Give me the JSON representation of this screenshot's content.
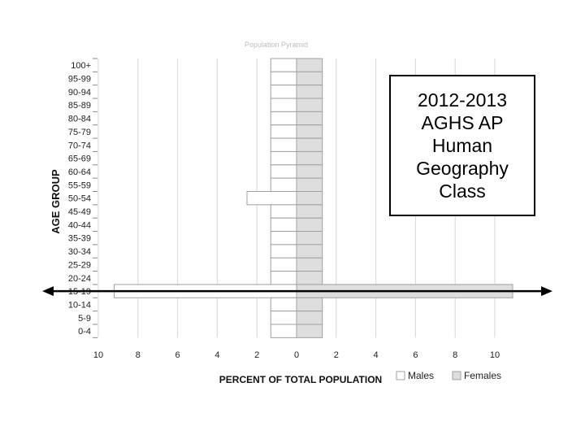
{
  "colors": {
    "males_fill": "#ffffff",
    "females_fill": "#dedede",
    "bar_stroke": "#a0a0a0",
    "grid": "#d6d6d6",
    "arrow": "#000000"
  },
  "chart_data": {
    "type": "bar",
    "orientation": "horizontal",
    "subtype": "population-pyramid",
    "title": "Population Pyramid",
    "xlabel": "PERCENT OF TOTAL POPULATION",
    "ylabel": "AGE GROUP",
    "xlim": [
      -10,
      10
    ],
    "x_ticks": [
      "10",
      "8",
      "6",
      "4",
      "2",
      "0",
      "2",
      "4",
      "6",
      "8",
      "10"
    ],
    "grid": true,
    "legend_position": "bottom-right",
    "categories": [
      "100+",
      "95-99",
      "90-94",
      "85-89",
      "80-84",
      "75-79",
      "70-74",
      "65-69",
      "60-64",
      "55-59",
      "50-54",
      "45-49",
      "40-44",
      "35-39",
      "30-34",
      "25-29",
      "20-24",
      "15-19",
      "10-14",
      "5-9",
      "0-4"
    ],
    "series": [
      {
        "name": "Males",
        "values": [
          1.3,
          1.3,
          1.3,
          1.3,
          1.3,
          1.3,
          1.3,
          1.3,
          1.3,
          1.3,
          2.5,
          1.3,
          1.3,
          1.3,
          1.3,
          1.3,
          1.3,
          9.2,
          1.3,
          1.3,
          1.3
        ]
      },
      {
        "name": "Females",
        "values": [
          1.3,
          1.3,
          1.3,
          1.3,
          1.3,
          1.3,
          1.3,
          1.3,
          1.3,
          1.3,
          1.3,
          1.3,
          1.3,
          1.3,
          1.3,
          1.3,
          1.3,
          10.9,
          1.3,
          1.3,
          1.3
        ]
      }
    ],
    "annotations": [
      "arrow-left",
      "arrow-right"
    ]
  },
  "class_label": {
    "lines": [
      "2012-2013",
      "AGHS AP",
      "Human",
      "Geography",
      "Class"
    ]
  }
}
